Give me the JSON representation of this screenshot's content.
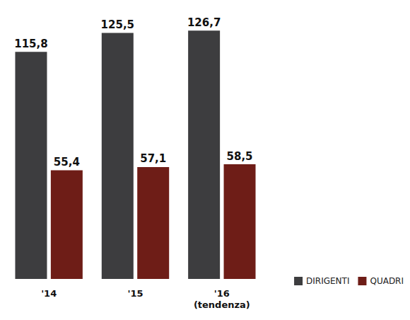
{
  "chart_data": {
    "type": "bar",
    "categories": [
      "'14",
      "'15",
      "'16 (tendenza)"
    ],
    "series": [
      {
        "name": "DIRIGENTI",
        "color": "#3d3d3f",
        "values": [
          115.8,
          125.5,
          126.7
        ],
        "value_labels": [
          "115,8",
          "125,5",
          "126,7"
        ]
      },
      {
        "name": "QUADRI",
        "color": "#6e1d17",
        "values": [
          55.4,
          57.1,
          58.5
        ],
        "value_labels": [
          "55,4",
          "57,1",
          "58,5"
        ]
      }
    ],
    "ylim": [
      0,
      130
    ],
    "grid": false,
    "legend": "lower right",
    "data_labels": true,
    "tick_labels": "x"
  }
}
